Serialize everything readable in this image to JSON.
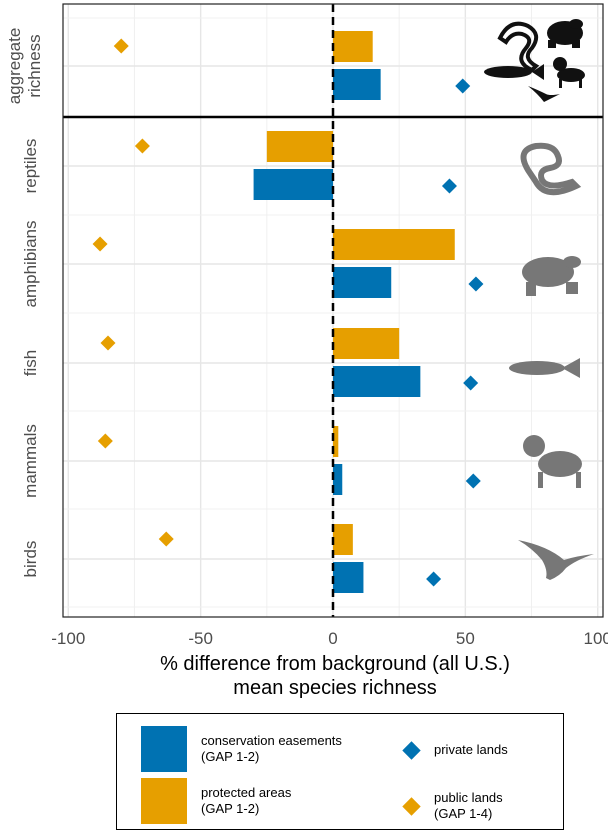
{
  "chart_data": {
    "type": "bar",
    "x_axis": {
      "label_line1": "% difference from background (all U.S.)",
      "label_line2": "mean species richness",
      "range": [
        -102,
        102
      ],
      "ticks": [
        -100,
        -50,
        0,
        50,
        100
      ]
    },
    "groups": [
      {
        "name": "aggregate\nrichness",
        "protected_areas": 15,
        "conservation_easements": 18,
        "public_lands": -80,
        "private_lands": 49,
        "icon": "multi-taxa-icon"
      },
      {
        "name": "reptiles",
        "protected_areas": -25,
        "conservation_easements": -30,
        "public_lands": -72,
        "private_lands": 44,
        "icon": "snake-icon"
      },
      {
        "name": "amphibians",
        "protected_areas": 46,
        "conservation_easements": 22,
        "public_lands": -88,
        "private_lands": 54,
        "icon": "frog-icon"
      },
      {
        "name": "fish",
        "protected_areas": 25,
        "conservation_easements": 33,
        "public_lands": -85,
        "private_lands": 52,
        "icon": "fish-icon"
      },
      {
        "name": "mammals",
        "protected_areas": 2,
        "conservation_easements": 3.5,
        "public_lands": -86,
        "private_lands": 53,
        "icon": "lynx-icon"
      },
      {
        "name": "birds",
        "protected_areas": 7.5,
        "conservation_easements": 11.5,
        "public_lands": -63,
        "private_lands": 38,
        "icon": "bird-icon"
      }
    ],
    "series": [
      {
        "key": "conservation_easements",
        "name": "conservation easements\n (GAP 1-2)",
        "color": "#0072B2",
        "shape": "bar"
      },
      {
        "key": "protected_areas",
        "name": "protected areas\n (GAP 1-2)",
        "color": "#E69F00",
        "shape": "bar"
      },
      {
        "key": "private_lands",
        "name": "private lands",
        "color": "#0072B2",
        "shape": "diamond"
      },
      {
        "key": "public_lands",
        "name": "public lands\n(GAP 1-4)",
        "color": "#E69F00",
        "shape": "diamond"
      }
    ],
    "reference_line": 0,
    "grid": true,
    "legend_position": "bottom"
  }
}
